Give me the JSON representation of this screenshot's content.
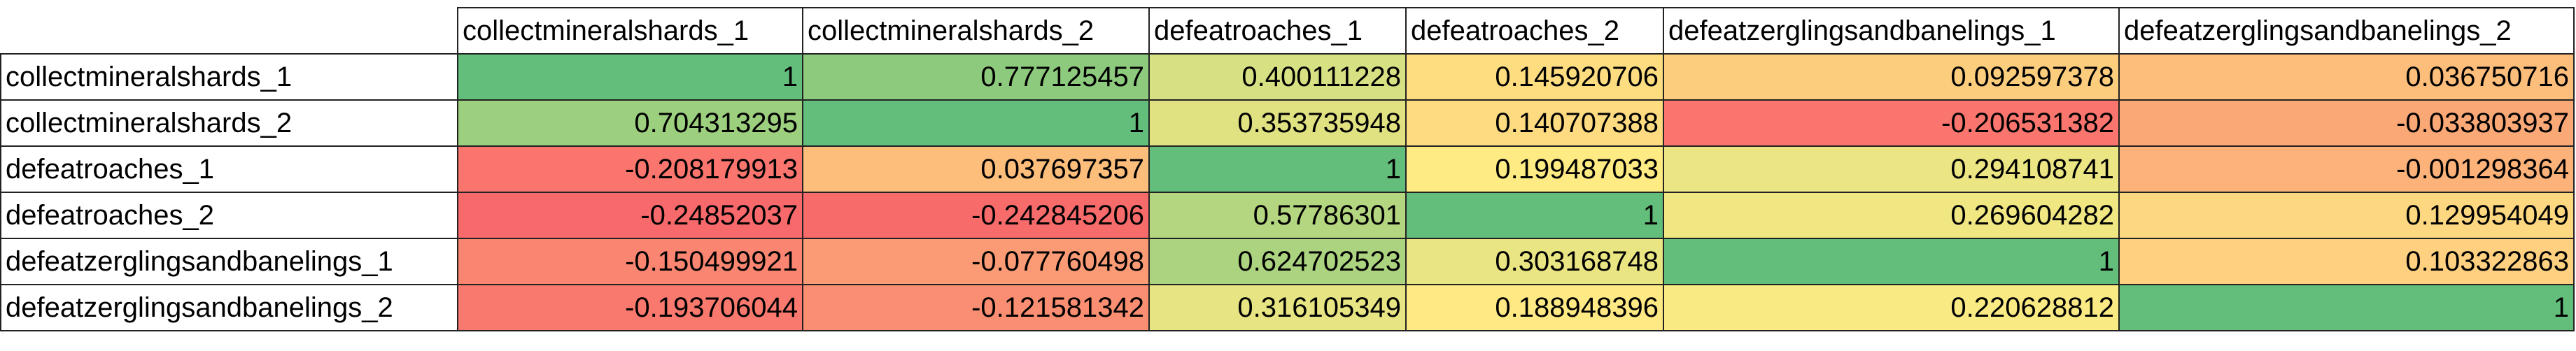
{
  "table": {
    "columns": [
      "collectmineralshards_1",
      "collectmineralshards_2",
      "defeatroaches_1",
      "defeatroaches_2",
      "defeatzerglingsandbanelings_1",
      "defeatzerglingsandbanelings_2"
    ],
    "rows": [
      {
        "label": "collectmineralshards_1",
        "values": [
          1,
          0.777125457,
          0.400111228,
          0.145920706,
          0.092597378,
          0.036750716
        ]
      },
      {
        "label": "collectmineralshards_2",
        "values": [
          0.704313295,
          1,
          0.353735948,
          0.140707388,
          -0.206531382,
          -0.033803937
        ]
      },
      {
        "label": "defeatroaches_1",
        "values": [
          -0.208179913,
          0.037697357,
          1,
          0.199487033,
          0.294108741,
          -0.001298364
        ]
      },
      {
        "label": "defeatroaches_2",
        "values": [
          -0.24852037,
          -0.242845206,
          0.57786301,
          1,
          0.269604282,
          0.129954049
        ]
      },
      {
        "label": "defeatzerglingsandbanelings_1",
        "values": [
          -0.150499921,
          -0.077760498,
          0.624702523,
          0.303168748,
          1,
          0.103322863
        ]
      },
      {
        "label": "defeatzerglingsandbanelings_2",
        "values": [
          -0.193706044,
          -0.121581342,
          0.316105349,
          0.188948396,
          0.220628812,
          1
        ]
      }
    ],
    "color_scale": {
      "min": "#f8696b",
      "mid": "#ffeb84",
      "max": "#63be7b"
    }
  }
}
